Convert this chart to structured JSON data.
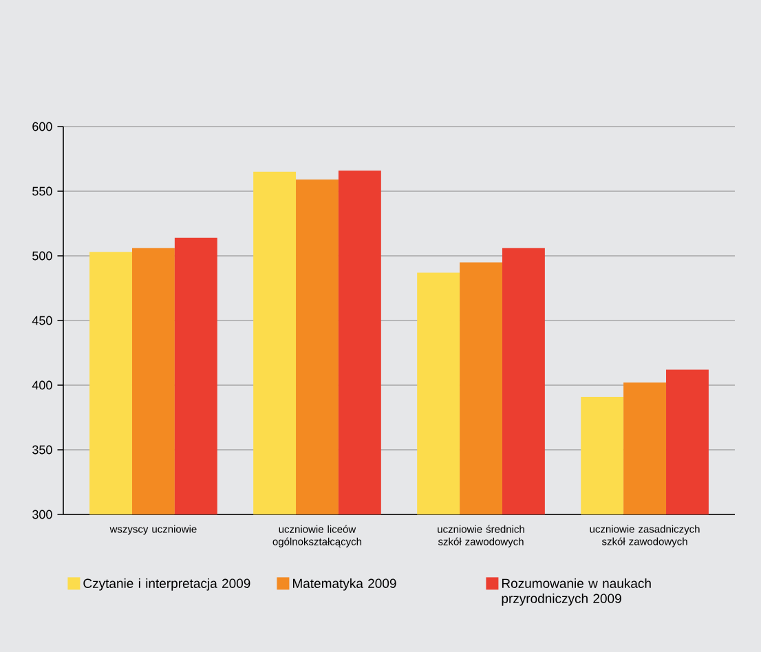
{
  "chart_data": {
    "type": "bar",
    "categories": [
      "wszyscy uczniowie",
      "uczniowie liceów ogólnokształcących",
      "uczniowie średnich szkół zawodowych",
      "uczniowie zasadniczych szkół zawodowych"
    ],
    "series": [
      {
        "name": "Czytanie i interpretacja 2009",
        "color": "#fcdc4c",
        "values": [
          503,
          565,
          487,
          391
        ]
      },
      {
        "name": "Matematyka 2009",
        "color": "#f38a22",
        "values": [
          506,
          559,
          495,
          402
        ]
      },
      {
        "name": "Rozumowanie w naukach przyrodniczych 2009",
        "color": "#eb3e30",
        "values": [
          514,
          566,
          506,
          412
        ]
      }
    ],
    "ylim": [
      300,
      600
    ],
    "yticks": [
      300,
      350,
      400,
      450,
      500,
      550,
      600
    ],
    "grid": "y",
    "legend": "bottom"
  }
}
